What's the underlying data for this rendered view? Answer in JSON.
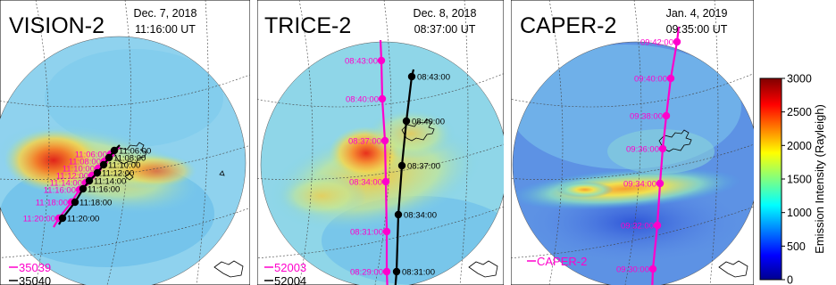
{
  "chart_data": [
    {
      "type": "scatter",
      "title": "VISION-2",
      "date": "Dec. 7, 2018",
      "time": "11:16:00 UT",
      "series": [
        {
          "name": "35039",
          "color": "#ff00cc",
          "labels": [
            "11:06:00",
            "11:08:00",
            "11:10:00",
            "11:12:00",
            "11:14:00",
            "11:16:00",
            "11:18:00",
            "11:20:00"
          ]
        },
        {
          "name": "35040",
          "color": "#000000",
          "labels": [
            "11:06:00",
            "11:08:00",
            "11:10:00",
            "11:12:00",
            "11:14:00",
            "11:16:00",
            "11:18:00",
            "11:20:00"
          ]
        }
      ]
    },
    {
      "type": "scatter",
      "title": "TRICE-2",
      "date": "Dec. 8, 2018",
      "time": "08:37:00 UT",
      "series": [
        {
          "name": "52003",
          "color": "#ff00cc",
          "labels": [
            "08:43:00",
            "08:40:00",
            "08:37:00",
            "08:34:00",
            "08:31:00",
            "08:29:00"
          ]
        },
        {
          "name": "52004",
          "color": "#000000",
          "labels": [
            "08:43:00",
            "08:40:00",
            "08:37:00",
            "08:34:00",
            "08:31:00"
          ]
        }
      ]
    },
    {
      "type": "scatter",
      "title": "CAPER-2",
      "date": "Jan. 4, 2019",
      "time": "09:35:00 UT",
      "series": [
        {
          "name": "CAPER-2",
          "color": "#ff00cc",
          "labels": [
            "09:42:00",
            "09:40:00",
            "09:38:00",
            "09:36:00",
            "09:34:00",
            "09:32:00",
            "09:30:00"
          ]
        }
      ]
    }
  ],
  "colorbar": {
    "title": "Emission Intensity (Rayleigh)",
    "min": 0,
    "max": 3000,
    "ticks": [
      0,
      500,
      1000,
      1500,
      2000,
      2500,
      3000
    ]
  }
}
